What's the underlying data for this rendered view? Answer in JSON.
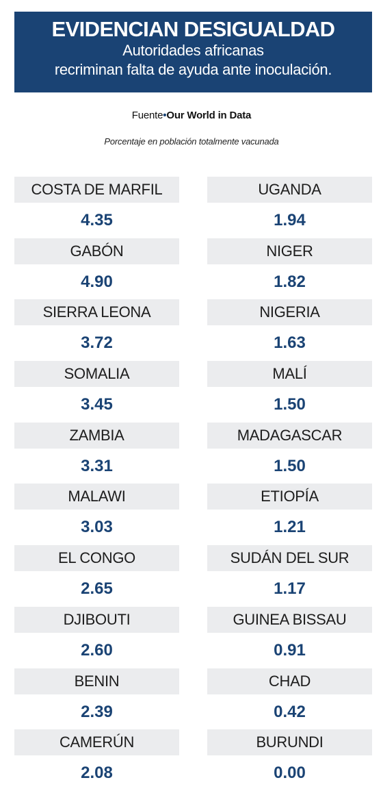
{
  "header": {
    "title": "EVIDENCIAN DESIGUALDAD",
    "subtitle_line1": "Autoridades africanas",
    "subtitle_line2": "recriminan falta de ayuda ante inoculación."
  },
  "source": {
    "prefix": "Fuente",
    "separator": "•",
    "name": "Our World in Data"
  },
  "note": "Porcentaje en población totalmente vacunada",
  "colors": {
    "header_bg": "#1a4374",
    "value_text": "#1a4374",
    "cell_bg": "#ebecee"
  },
  "chart_data": {
    "type": "table",
    "title": "EVIDENCIAN DESIGUALDAD",
    "subtitle": "Autoridades africanas recriminan falta de ayuda ante inoculación.",
    "value_label": "Porcentaje en población totalmente vacunada",
    "left": [
      {
        "country": "COSTA DE MARFIL",
        "value": "4.35"
      },
      {
        "country": "GABÓN",
        "value": "4.90"
      },
      {
        "country": "SIERRA LEONA",
        "value": "3.72"
      },
      {
        "country": "SOMALIA",
        "value": "3.45"
      },
      {
        "country": "ZAMBIA",
        "value": "3.31"
      },
      {
        "country": "MALAWI",
        "value": "3.03"
      },
      {
        "country": "EL CONGO",
        "value": "2.65"
      },
      {
        "country": "DJIBOUTI",
        "value": "2.60"
      },
      {
        "country": "BENIN",
        "value": "2.39"
      },
      {
        "country": "CAMERÚN",
        "value": "2.08"
      }
    ],
    "right": [
      {
        "country": "UGANDA",
        "value": "1.94"
      },
      {
        "country": "NIGER",
        "value": "1.82"
      },
      {
        "country": "NIGERIA",
        "value": "1.63"
      },
      {
        "country": "MALÍ",
        "value": "1.50"
      },
      {
        "country": "MADAGASCAR",
        "value": "1.50"
      },
      {
        "country": "ETIOPÍA",
        "value": "1.21"
      },
      {
        "country": "SUDÁN DEL SUR",
        "value": "1.17"
      },
      {
        "country": "GUINEA BISSAU",
        "value": "0.91"
      },
      {
        "country": "CHAD",
        "value": "0.42"
      },
      {
        "country": "BURUNDI",
        "value": "0.00"
      }
    ]
  }
}
